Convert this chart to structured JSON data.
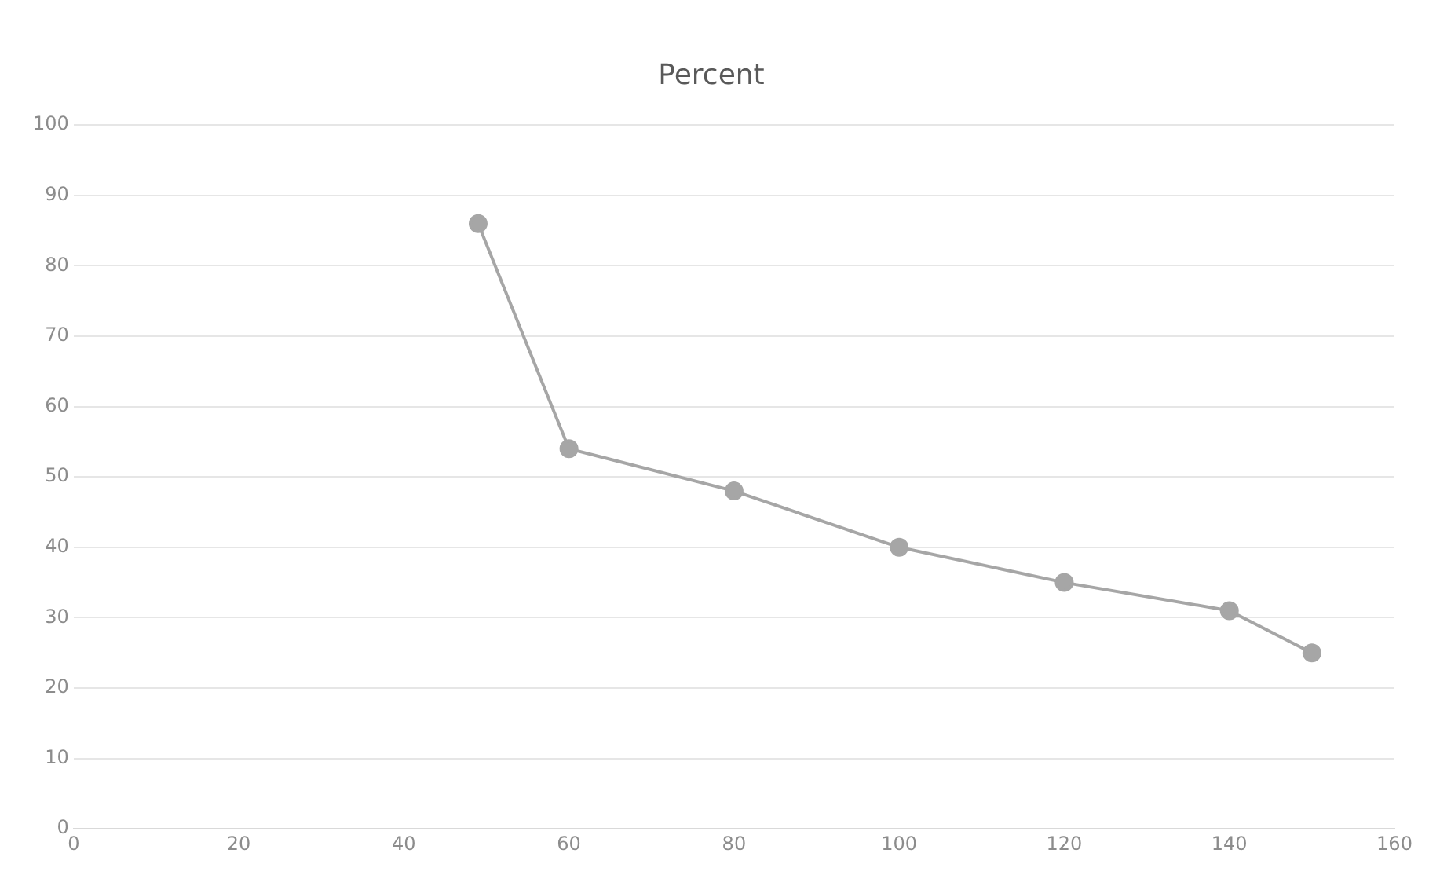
{
  "chart_data": {
    "type": "line",
    "title": "Percent",
    "x": [
      49,
      60,
      80,
      100,
      120,
      140,
      150
    ],
    "series": [
      {
        "color": "#a6a6a6",
        "values": [
          86,
          54,
          48,
          40,
          35,
          31,
          25
        ]
      }
    ],
    "xlim": [
      0,
      160
    ],
    "xticks": [
      0,
      20,
      40,
      60,
      80,
      100,
      120,
      140,
      160
    ],
    "ylim": [
      0,
      100
    ],
    "yticks": [
      0,
      10,
      20,
      30,
      40,
      50,
      60,
      70,
      80,
      90,
      100
    ],
    "grid": "y",
    "legend": false,
    "marker": "circle",
    "line_style": "solid"
  }
}
